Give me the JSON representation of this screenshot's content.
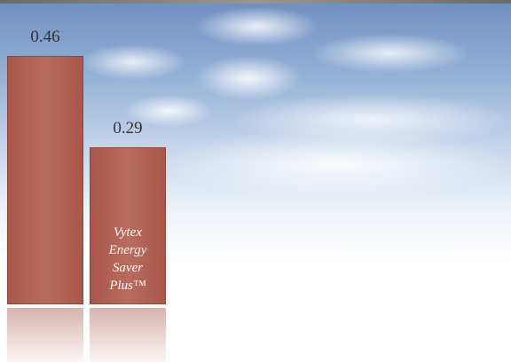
{
  "chart_data": {
    "type": "bar",
    "categories": [
      null,
      "Vytex Energy Saver Plus™"
    ],
    "values": [
      0.46,
      0.29
    ],
    "color": "#a9574a"
  }
}
